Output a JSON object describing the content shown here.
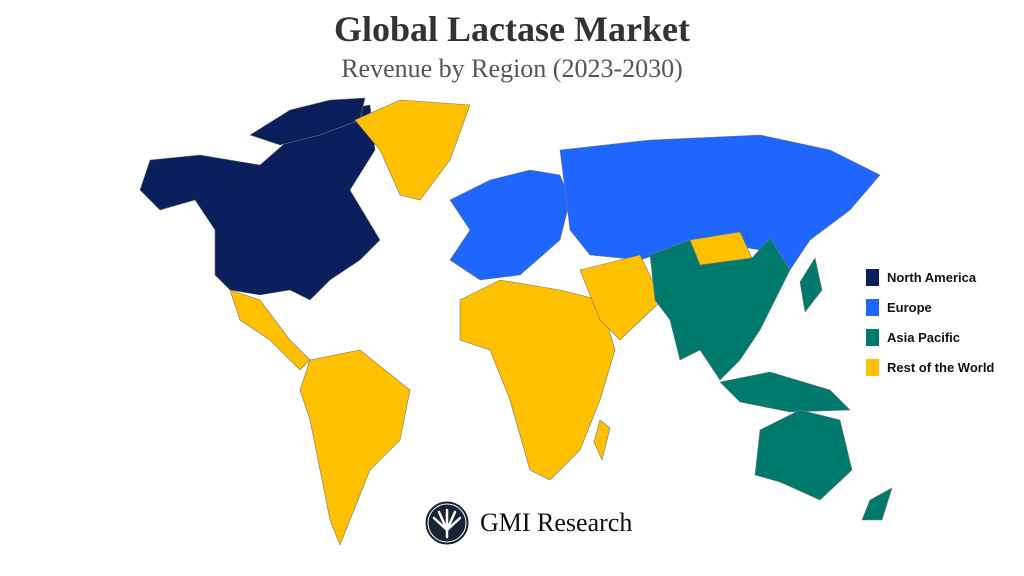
{
  "title": "Global Lactase Market",
  "subtitle": "Revenue by Region (2023-2030)",
  "legend": [
    {
      "label": "North America",
      "color": "#0a1f5c"
    },
    {
      "label": "Europe",
      "color": "#1f66ff"
    },
    {
      "label": "Asia Pacific",
      "color": "#007a6c"
    },
    {
      "label": "Rest of the World",
      "color": "#ffc000"
    }
  ],
  "logo": {
    "text": "GMI Research"
  }
}
